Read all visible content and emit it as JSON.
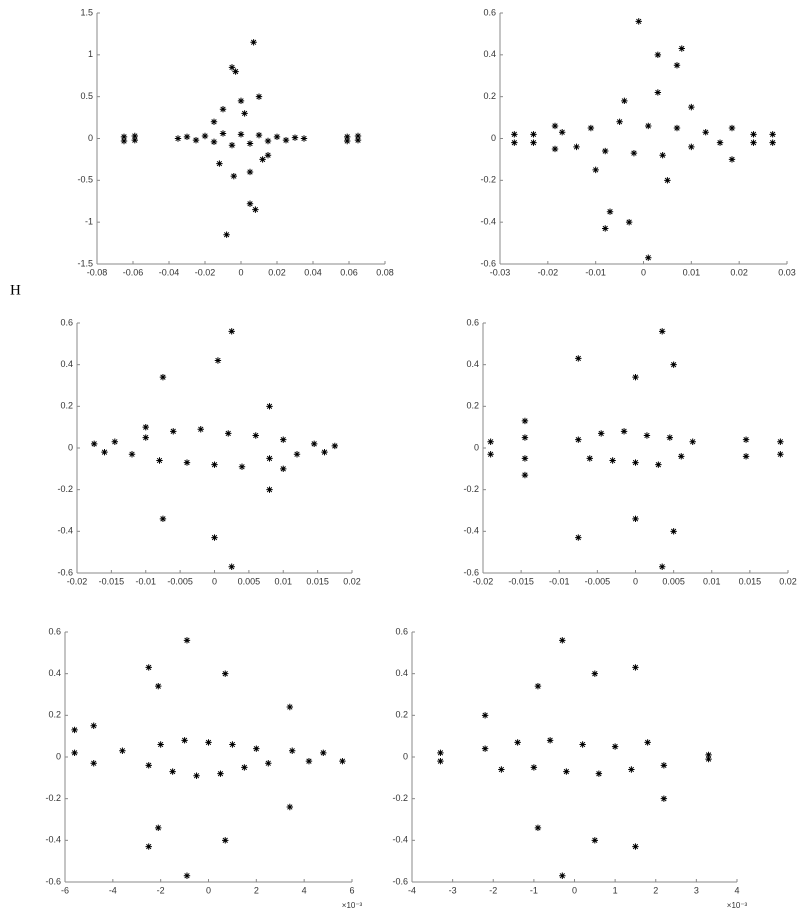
{
  "figure_label": "H",
  "chart_data": [
    {
      "type": "scatter",
      "color": "#000000",
      "x": [
        -0.065,
        -0.065,
        -0.059,
        -0.059,
        0.059,
        0.059,
        0.065,
        0.065,
        -0.035,
        -0.03,
        -0.025,
        -0.02,
        -0.015,
        -0.01,
        -0.005,
        0,
        0.005,
        0.01,
        0.015,
        0.02,
        0.025,
        0.03,
        0.035,
        0.007,
        -0.005,
        -0.003,
        0,
        -0.01,
        0.01,
        0.002,
        -0.004,
        0.005,
        -0.012,
        0.012,
        0.005,
        0.008,
        -0.008,
        -0.015,
        0.015
      ],
      "values": [
        0.02,
        -0.03,
        0.03,
        -0.02,
        0.02,
        -0.03,
        0.03,
        -0.02,
        0,
        0.02,
        -0.02,
        0.03,
        -0.04,
        0.06,
        -0.08,
        0.05,
        -0.06,
        0.04,
        -0.03,
        0.02,
        -0.02,
        0.01,
        0,
        1.15,
        0.85,
        0.8,
        0.45,
        0.35,
        0.5,
        0.3,
        -0.45,
        -0.4,
        -0.3,
        -0.25,
        -0.78,
        -0.85,
        -1.15,
        0.2,
        -0.2
      ],
      "xlim": [
        -0.08,
        0.08
      ],
      "xticks": [
        -0.08,
        -0.06,
        -0.04,
        -0.02,
        0,
        0.02,
        0.04,
        0.06,
        0.08
      ],
      "ylim": [
        -1.5,
        1.5
      ],
      "yticks": [
        -1.5,
        -1,
        -0.5,
        0,
        0.5,
        1,
        1.5
      ]
    },
    {
      "type": "scatter",
      "color": "#000000",
      "x": [
        -0.027,
        -0.027,
        -0.023,
        -0.023,
        -0.0185,
        -0.0185,
        0.0185,
        0.0185,
        0.023,
        0.023,
        0.027,
        0.027,
        -0.017,
        -0.014,
        -0.011,
        -0.008,
        -0.005,
        -0.002,
        0.001,
        0.004,
        0.007,
        0.01,
        0.013,
        0.016,
        -0.001,
        0.008,
        0.003,
        0.007,
        -0.008,
        -0.007,
        0.001,
        -0.003,
        0.003,
        -0.004,
        0.005,
        -0.01,
        0.01
      ],
      "values": [
        0.02,
        -0.02,
        0.02,
        -0.02,
        0.06,
        -0.05,
        0.05,
        -0.1,
        0.02,
        -0.02,
        0.02,
        -0.02,
        0.03,
        -0.04,
        0.05,
        -0.06,
        0.08,
        -0.07,
        0.06,
        -0.08,
        0.05,
        -0.04,
        0.03,
        -0.02,
        0.56,
        0.43,
        0.4,
        0.35,
        -0.43,
        -0.35,
        -0.57,
        -0.4,
        0.22,
        0.18,
        -0.2,
        -0.15,
        0.15
      ],
      "xlim": [
        -0.03,
        0.03
      ],
      "xticks": [
        -0.03,
        -0.02,
        -0.01,
        0,
        0.01,
        0.02,
        0.03
      ],
      "ylim": [
        -0.6,
        0.6
      ],
      "yticks": [
        -0.6,
        -0.4,
        -0.2,
        0,
        0.2,
        0.4,
        0.6
      ]
    },
    {
      "type": "scatter",
      "color": "#000000",
      "x": [
        -0.0175,
        -0.016,
        -0.0145,
        -0.012,
        -0.01,
        -0.008,
        -0.006,
        -0.004,
        -0.002,
        0,
        0.002,
        0.004,
        0.006,
        0.008,
        0.01,
        0.012,
        0.0145,
        0.016,
        0.0175,
        0.0025,
        0.0005,
        -0.0075,
        0,
        -0.0075,
        0.0025,
        0.008,
        0.008,
        -0.01,
        0.01
      ],
      "values": [
        0.02,
        -0.02,
        0.03,
        -0.03,
        0.05,
        -0.06,
        0.08,
        -0.07,
        0.09,
        -0.08,
        0.07,
        -0.09,
        0.06,
        -0.05,
        0.04,
        -0.03,
        0.02,
        -0.02,
        0.01,
        0.56,
        0.42,
        0.34,
        -0.43,
        -0.34,
        -0.57,
        0.2,
        -0.2,
        0.1,
        -0.1
      ],
      "xlim": [
        -0.02,
        0.02
      ],
      "xticks": [
        -0.02,
        -0.015,
        -0.01,
        -0.005,
        0,
        0.005,
        0.01,
        0.015,
        0.02
      ],
      "ylim": [
        -0.6,
        0.6
      ],
      "yticks": [
        -0.6,
        -0.4,
        -0.2,
        0,
        0.2,
        0.4,
        0.6
      ]
    },
    {
      "type": "scatter",
      "color": "#000000",
      "x": [
        -0.019,
        -0.019,
        -0.0145,
        -0.0145,
        0.0145,
        0.0145,
        0.019,
        0.019,
        -0.0075,
        -0.006,
        -0.0045,
        -0.003,
        -0.0015,
        0,
        0.0015,
        0.003,
        0.0045,
        0.006,
        0.0075,
        -0.0075,
        0.0035,
        0,
        0.005,
        -0.0075,
        0,
        0.0035,
        0.005,
        -0.0145,
        -0.0145
      ],
      "values": [
        0.03,
        -0.03,
        0.05,
        -0.05,
        0.04,
        -0.04,
        0.03,
        -0.03,
        0.04,
        -0.05,
        0.07,
        -0.06,
        0.08,
        -0.07,
        0.06,
        -0.08,
        0.05,
        -0.04,
        0.03,
        0.43,
        0.56,
        0.34,
        0.4,
        -0.43,
        -0.34,
        -0.57,
        -0.4,
        0.13,
        -0.13
      ],
      "xlim": [
        -0.02,
        0.02
      ],
      "xticks": [
        -0.02,
        -0.015,
        -0.01,
        -0.005,
        0,
        0.005,
        0.01,
        0.015,
        0.02
      ],
      "ylim": [
        -0.6,
        0.6
      ],
      "yticks": [
        -0.6,
        -0.4,
        -0.2,
        0,
        0.2,
        0.4,
        0.6
      ]
    },
    {
      "type": "scatter",
      "color": "#000000",
      "x_multiplier_label": "×10⁻³",
      "x": [
        -5.6,
        -4.8,
        -3.6,
        -2.5,
        -2,
        -1.5,
        -1,
        -0.5,
        0,
        0.5,
        1,
        1.5,
        2,
        2.5,
        3.5,
        4.2,
        4.8,
        5.6,
        -0.9,
        0.7,
        -2.5,
        -2.1,
        -2.5,
        -2.1,
        -0.9,
        0.7,
        3.4,
        3.4,
        -5.6,
        -4.8
      ],
      "values": [
        0.02,
        -0.03,
        0.03,
        -0.04,
        0.06,
        -0.07,
        0.08,
        -0.09,
        0.07,
        -0.08,
        0.06,
        -0.05,
        0.04,
        -0.03,
        0.03,
        -0.02,
        0.02,
        -0.02,
        0.56,
        0.4,
        0.43,
        0.34,
        -0.43,
        -0.34,
        -0.57,
        -0.4,
        0.24,
        -0.24,
        0.13,
        0.15
      ],
      "xlim": [
        -6,
        6
      ],
      "xticks": [
        -6,
        -4,
        -2,
        0,
        2,
        4,
        6
      ],
      "ylim": [
        -0.6,
        0.6
      ],
      "yticks": [
        -0.6,
        -0.4,
        -0.2,
        0,
        0.2,
        0.4,
        0.6
      ]
    },
    {
      "type": "scatter",
      "color": "#000000",
      "x_multiplier_label": "×10⁻³",
      "x": [
        -3.3,
        -3.3,
        -2.2,
        -1.8,
        -1.4,
        -1,
        -0.6,
        -0.2,
        0.2,
        0.6,
        1,
        1.4,
        1.8,
        2.2,
        3.3,
        3.3,
        -0.3,
        0.5,
        1.5,
        -0.9,
        -0.3,
        0.5,
        1.5,
        -0.9,
        -2.2,
        2.2
      ],
      "values": [
        0.02,
        -0.02,
        0.04,
        -0.06,
        0.07,
        -0.05,
        0.08,
        -0.07,
        0.06,
        -0.08,
        0.05,
        -0.06,
        0.07,
        -0.04,
        0.01,
        -0.01,
        0.56,
        0.4,
        0.43,
        0.34,
        -0.57,
        -0.4,
        -0.43,
        -0.34,
        0.2,
        -0.2
      ],
      "xlim": [
        -4,
        4
      ],
      "xticks": [
        -4,
        -3,
        -2,
        -1,
        0,
        1,
        2,
        3,
        4
      ],
      "ylim": [
        -0.6,
        0.6
      ],
      "yticks": [
        -0.6,
        -0.4,
        -0.2,
        0,
        0.2,
        0.4,
        0.6
      ]
    }
  ]
}
